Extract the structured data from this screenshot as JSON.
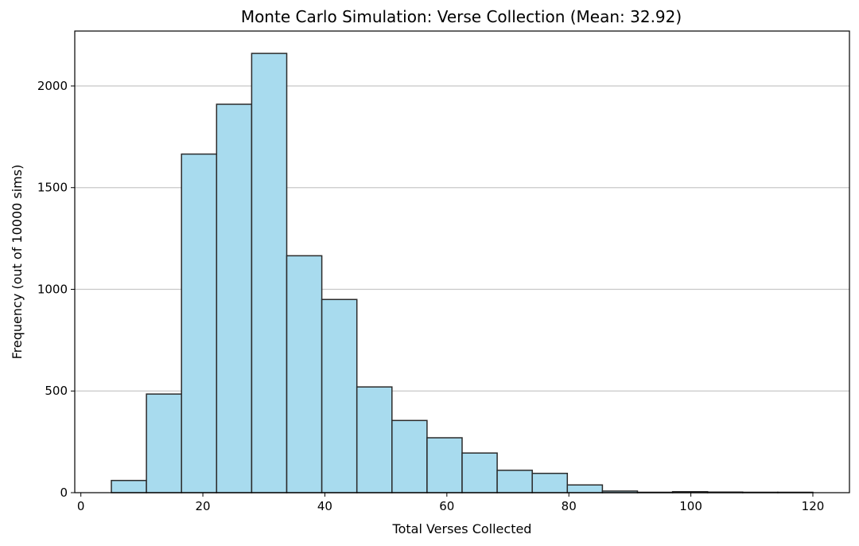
{
  "chart_data": {
    "type": "bar",
    "subtype": "histogram",
    "title": "Monte Carlo Simulation: Verse Collection (Mean: 32.92)",
    "xlabel": "Total Verses Collected",
    "ylabel": "Frequency (out of 10000 sims)",
    "xlim": [
      -1,
      126
    ],
    "ylim": [
      0,
      2270
    ],
    "xticks": [
      0,
      20,
      40,
      60,
      80,
      100,
      120
    ],
    "yticks": [
      0,
      500,
      1000,
      1500,
      2000
    ],
    "grid": "horizontal",
    "bar_color": "#a8dbee",
    "edge_color": "#2b2b2b",
    "grid_color": "#c8c8c8",
    "bin_edges": [
      5,
      10.75,
      16.5,
      22.25,
      28,
      33.75,
      39.5,
      45.25,
      51,
      56.75,
      62.5,
      68.25,
      74,
      79.75,
      85.5,
      91.25,
      97,
      102.75,
      108.5,
      114.25,
      120
    ],
    "values": [
      60,
      485,
      1665,
      1910,
      2160,
      1165,
      950,
      520,
      355,
      270,
      195,
      110,
      95,
      38,
      8,
      2,
      5,
      3,
      2,
      2
    ]
  }
}
